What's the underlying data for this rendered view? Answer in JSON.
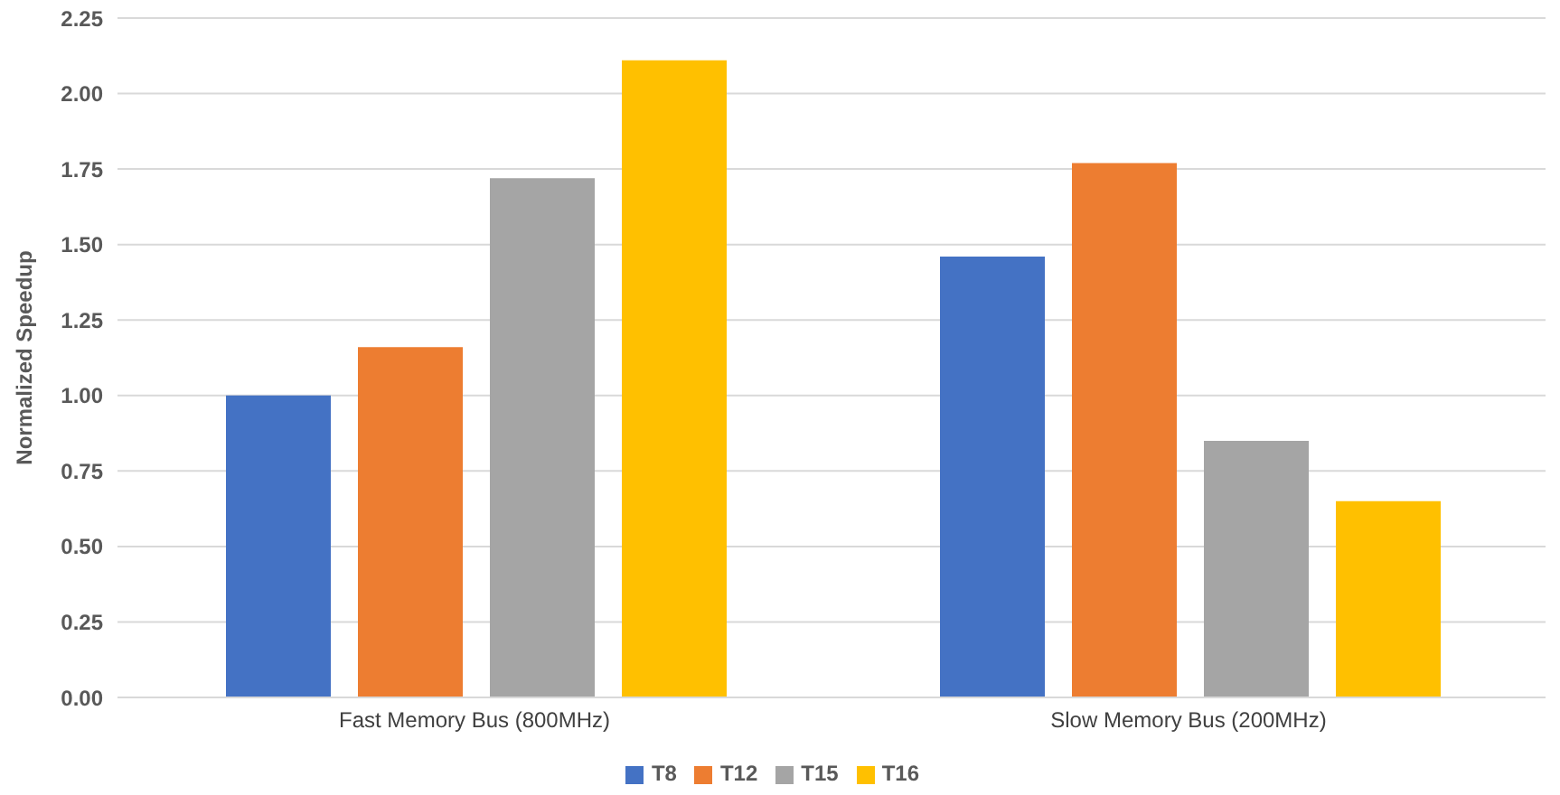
{
  "chart_data": {
    "type": "bar",
    "ylabel": "Normalized Speedup",
    "categories": [
      "Fast Memory Bus (800MHz)",
      "Slow Memory Bus (200MHz)"
    ],
    "series": [
      {
        "name": "T8",
        "color": "#4472c4",
        "values": [
          1.0,
          1.46
        ]
      },
      {
        "name": "T12",
        "color": "#ed7d31",
        "values": [
          1.16,
          1.77
        ]
      },
      {
        "name": "T15",
        "color": "#a5a5a5",
        "values": [
          1.72,
          0.85
        ]
      },
      {
        "name": "T16",
        "color": "#ffc000",
        "values": [
          2.11,
          0.65
        ]
      }
    ],
    "ylim": [
      0,
      2.25
    ],
    "yticks": [
      {
        "value": 0,
        "label": "0.00"
      },
      {
        "value": 0.25,
        "label": "0.25"
      },
      {
        "value": 0.5,
        "label": "0.50"
      },
      {
        "value": 0.75,
        "label": "0.75"
      },
      {
        "value": 1,
        "label": "1.00"
      },
      {
        "value": 1.25,
        "label": "1.25"
      },
      {
        "value": 1.5,
        "label": "1.50"
      },
      {
        "value": 1.75,
        "label": "1.75"
      },
      {
        "value": 2,
        "label": "2.00"
      },
      {
        "value": 2.25,
        "label": "2.25"
      }
    ],
    "grid": "y",
    "legend": "bottom"
  }
}
